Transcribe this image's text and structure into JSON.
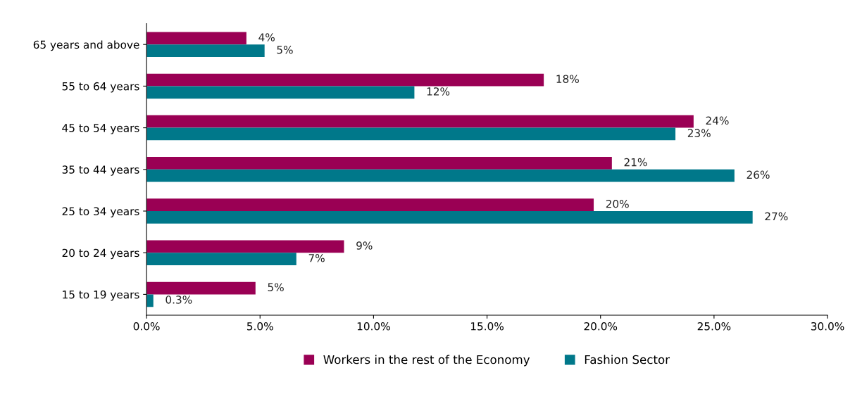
{
  "chart_data": {
    "type": "bar",
    "orientation": "horizontal",
    "categories": [
      "65 years and above",
      "55 to 64 years",
      "45 to 54 years",
      "35 to 44 years",
      "25 to 34 years",
      "20 to 24 years",
      "15 to 19 years"
    ],
    "series": [
      {
        "name": "Workers in the rest of the Economy",
        "color": "#9a0054",
        "values": [
          4.4,
          17.5,
          24.1,
          20.5,
          19.7,
          8.7,
          4.8
        ],
        "value_labels": [
          "4%",
          "18%",
          "24%",
          "21%",
          "20%",
          "9%",
          "5%"
        ]
      },
      {
        "name": "Fashion Sector",
        "color": "#00788a",
        "values": [
          5.2,
          11.8,
          23.3,
          25.9,
          26.7,
          6.6,
          0.3
        ],
        "value_labels": [
          "5%",
          "12%",
          "23%",
          "26%",
          "27%",
          "7%",
          "0.3%"
        ]
      }
    ],
    "xlim": [
      0,
      30
    ],
    "xticks": [
      {
        "value": 0,
        "label": "0.0%"
      },
      {
        "value": 5,
        "label": "5.0%"
      },
      {
        "value": 10,
        "label": "10.0%"
      },
      {
        "value": 15,
        "label": "15.0%"
      },
      {
        "value": 20,
        "label": "20.0%"
      },
      {
        "value": 25,
        "label": "25.0%"
      },
      {
        "value": 30,
        "label": "30.0%"
      }
    ],
    "grid": false,
    "legend": "bottom"
  }
}
